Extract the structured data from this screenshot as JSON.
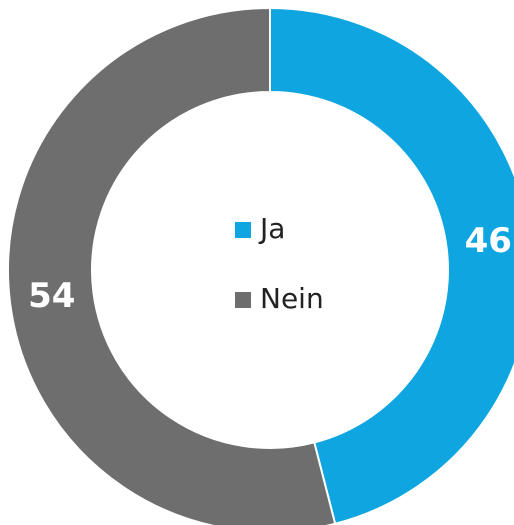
{
  "chart_data": {
    "type": "donut",
    "categories": [
      "Ja",
      "Nein"
    ],
    "values": [
      46,
      54
    ],
    "colors": [
      "#0ea5e0",
      "#6e6e6e"
    ],
    "legend": "center"
  }
}
